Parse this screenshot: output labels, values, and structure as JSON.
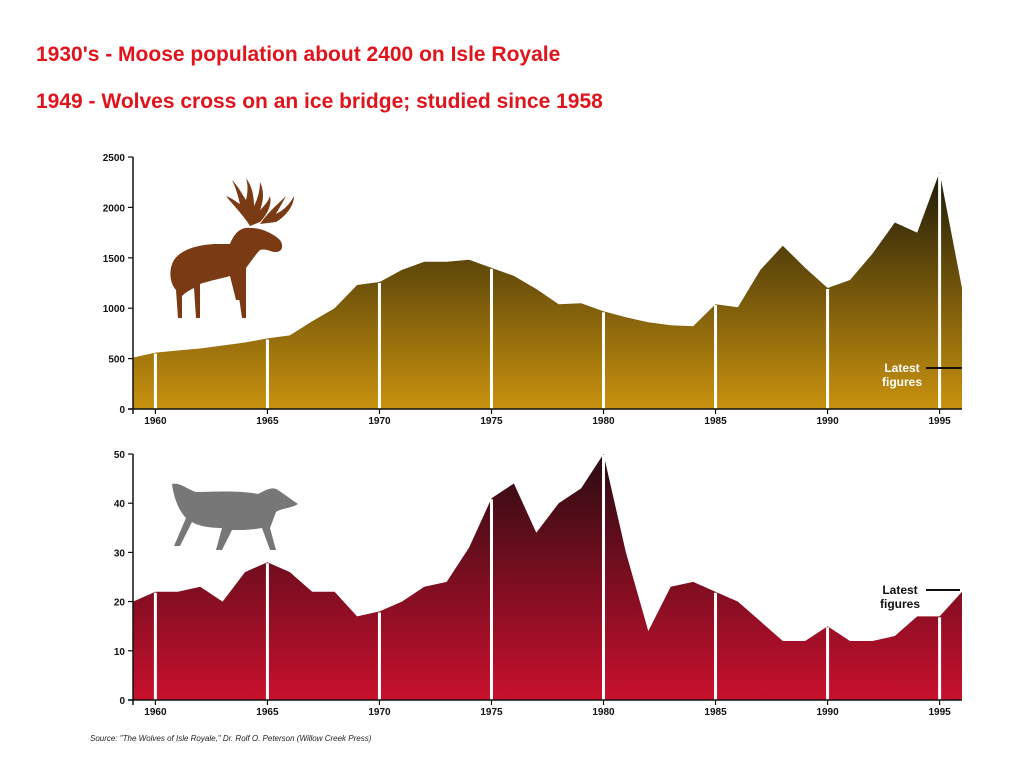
{
  "headlines": {
    "line1": "1930's - Moose population about 2400 on Isle Royale",
    "line2": "1949 - Wolves cross on an ice bridge; studied since 1958",
    "color": "#e0141c"
  },
  "source_note": "Source: \"The Wolves of Isle Royale,\" Dr. Rolf O. Peterson (Willow Creek Press)",
  "chart_data": [
    {
      "type": "area",
      "subject": "moose",
      "icon": "moose-icon",
      "xlim": [
        1959,
        1996
      ],
      "ylim": [
        0,
        2500
      ],
      "x_ticks": [
        1960,
        1965,
        1970,
        1975,
        1980,
        1985,
        1990,
        1995
      ],
      "y_ticks": [
        0,
        500,
        1000,
        1500,
        2000,
        2500
      ],
      "grid": false,
      "annotation": {
        "line1": "Latest",
        "line2": "figures"
      },
      "colors": {
        "top": "#1e1a08",
        "bottom": "#c9920f",
        "icon": "#7a3a14",
        "annotation": "#ffffff"
      },
      "x": [
        1959,
        1960,
        1961,
        1962,
        1963,
        1964,
        1965,
        1966,
        1967,
        1968,
        1969,
        1970,
        1971,
        1972,
        1973,
        1974,
        1975,
        1976,
        1977,
        1978,
        1979,
        1980,
        1981,
        1982,
        1983,
        1984,
        1985,
        1986,
        1987,
        1988,
        1989,
        1990,
        1991,
        1992,
        1993,
        1994,
        1995,
        1996
      ],
      "values": [
        510,
        560,
        580,
        600,
        630,
        660,
        700,
        730,
        870,
        1000,
        1230,
        1260,
        1380,
        1460,
        1460,
        1480,
        1400,
        1320,
        1190,
        1040,
        1050,
        970,
        910,
        860,
        830,
        820,
        1040,
        1010,
        1380,
        1620,
        1400,
        1200,
        1280,
        1540,
        1850,
        1750,
        2350,
        1200
      ]
    },
    {
      "type": "area",
      "subject": "wolves",
      "icon": "wolf-icon",
      "xlim": [
        1959,
        1996
      ],
      "ylim": [
        0,
        50
      ],
      "x_ticks": [
        1960,
        1965,
        1970,
        1975,
        1980,
        1985,
        1990,
        1995
      ],
      "y_ticks": [
        0,
        10,
        20,
        30,
        40,
        50
      ],
      "grid": false,
      "annotation": {
        "line1": "Latest",
        "line2": "figures"
      },
      "colors": {
        "top": "#2a0c12",
        "bottom": "#c8102e",
        "icon": "#777777",
        "annotation": "#111111"
      },
      "x": [
        1959,
        1960,
        1961,
        1962,
        1963,
        1964,
        1965,
        1966,
        1967,
        1968,
        1969,
        1970,
        1971,
        1972,
        1973,
        1974,
        1975,
        1976,
        1977,
        1978,
        1979,
        1980,
        1981,
        1982,
        1983,
        1984,
        1985,
        1986,
        1987,
        1988,
        1989,
        1990,
        1991,
        1992,
        1993,
        1994,
        1995,
        1996
      ],
      "values": [
        20,
        22,
        22,
        23,
        20,
        26,
        28,
        26,
        22,
        22,
        17,
        18,
        20,
        23,
        24,
        31,
        41,
        44,
        34,
        40,
        43,
        50,
        30,
        14,
        23,
        24,
        22,
        20,
        16,
        12,
        12,
        15,
        12,
        12,
        13,
        17,
        17,
        22
      ]
    }
  ]
}
